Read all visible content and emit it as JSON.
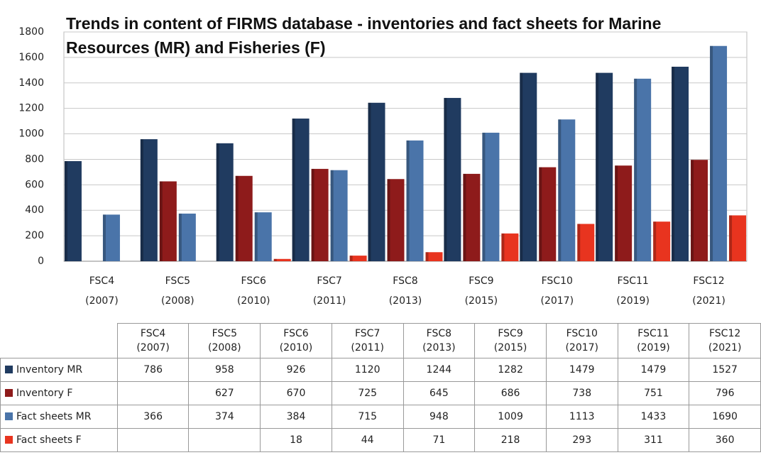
{
  "chart_data": {
    "type": "bar",
    "title": "Trends in content of FIRMS database - inventories and fact sheets for Marine Resources (MR) and Fisheries (F)",
    "categories": [
      "FSC4 (2007)",
      "FSC5 (2008)",
      "FSC6 (2010)",
      "FSC7 (2011)",
      "FSC8 (2013)",
      "FSC9 (2015)",
      "FSC10 (2017)",
      "FSC11 (2019)",
      "FSC12 (2021)"
    ],
    "series": [
      {
        "name": "Inventory MR",
        "color": "#203b60",
        "values": [
          786,
          958,
          926,
          1120,
          1244,
          1282,
          1479,
          1479,
          1527
        ]
      },
      {
        "name": "Inventory F",
        "color": "#8e1b1b",
        "values": [
          null,
          627,
          670,
          725,
          645,
          686,
          738,
          751,
          796
        ]
      },
      {
        "name": "Fact sheets MR",
        "color": "#4a74a9",
        "values": [
          366,
          374,
          384,
          715,
          948,
          1009,
          1113,
          1433,
          1690
        ]
      },
      {
        "name": "Fact sheets F",
        "color": "#e8341f",
        "values": [
          null,
          null,
          18,
          44,
          71,
          218,
          293,
          311,
          360
        ]
      }
    ],
    "ylim": [
      0,
      1800
    ],
    "yticks": [
      0,
      200,
      400,
      600,
      800,
      1000,
      1200,
      1400,
      1600,
      1800
    ],
    "grid": true
  }
}
